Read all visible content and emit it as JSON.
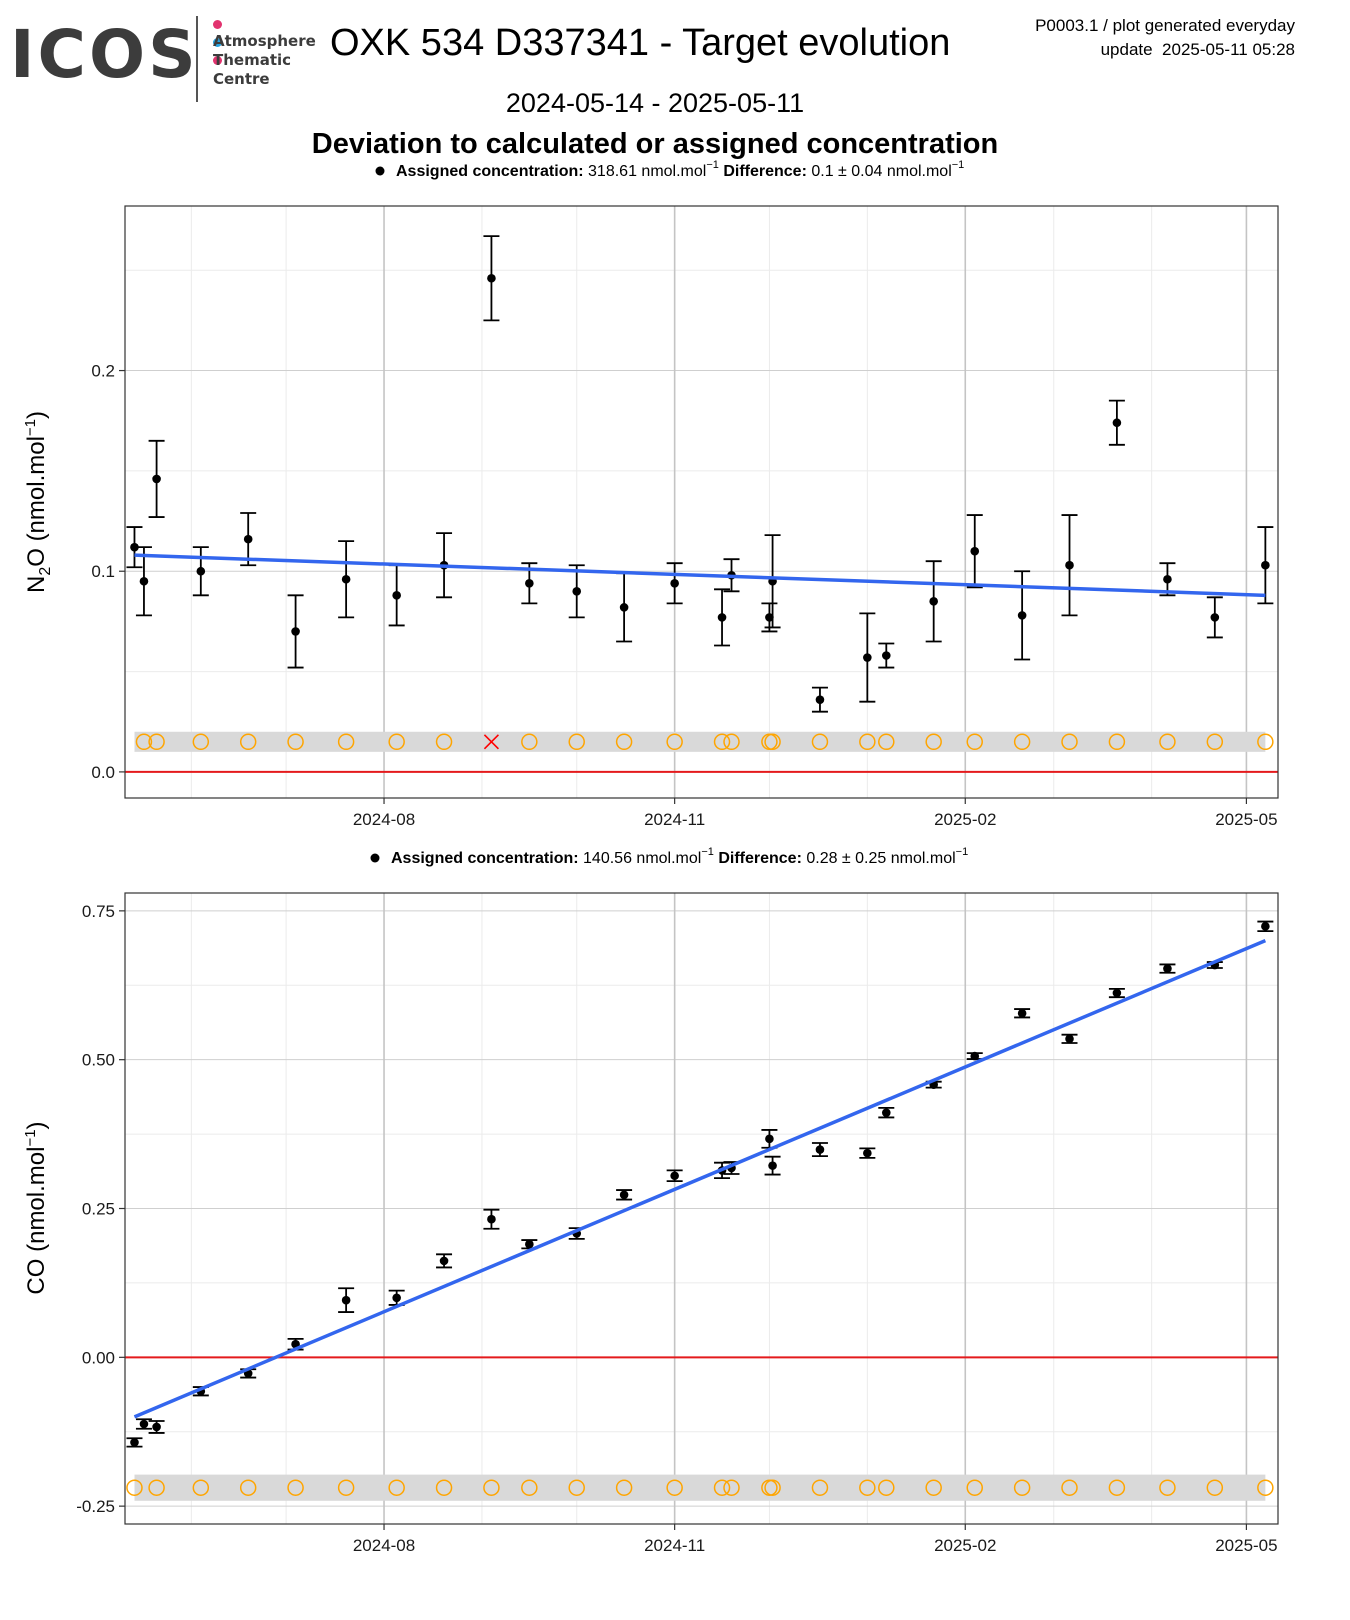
{
  "header": {
    "logo": {
      "word": "ICOS",
      "lines": [
        "Atmosphere",
        "Thematic",
        "Centre"
      ],
      "dot_colors": [
        "#e2336f",
        "#27a2de",
        "#e2336f"
      ]
    },
    "title": "OXK 534 D337341 - Target evolution",
    "meta_line1": "P0003.1 / plot generated everyday",
    "meta_line2": "update  2025-05-11 05:28",
    "period": "2024-05-14 - 2025-05-11",
    "subtitle": "Deviation to calculated or assigned concentration"
  },
  "colors": {
    "trend": "#3366ee",
    "zero_line": "#e41a1c",
    "points": "#000000",
    "circles": "#ffa500",
    "cross": "#ff0000",
    "band": "#d9d9d9",
    "grid_major": "#cfcfcf",
    "grid_minor": "#ebebeb"
  },
  "chart_data": [
    {
      "type": "scatter",
      "ylabel": "N2O (nmol.mol-1)",
      "legend": {
        "label_bold": "Assigned concentration:",
        "label_value": "318.61 nmol.mol",
        "diff_bold": "Difference:",
        "diff_value": "0.1 ± 0.04 nmol.mol",
        "position": "top"
      },
      "x_ticks": [
        "2024-08",
        "2024-11",
        "2025-02",
        "2025-05"
      ],
      "ylim": [
        -0.013,
        0.282
      ],
      "y_ticks": [
        0.0,
        0.1,
        0.2
      ],
      "y_tick_labels": [
        "0.0",
        "0.1",
        "0.2"
      ],
      "points": [
        {
          "x": "2024-05-14",
          "y": 0.112,
          "err": 0.01
        },
        {
          "x": "2024-05-17",
          "y": 0.095,
          "err": 0.017
        },
        {
          "x": "2024-05-21",
          "y": 0.146,
          "err": 0.019
        },
        {
          "x": "2024-06-04",
          "y": 0.1,
          "err": 0.012
        },
        {
          "x": "2024-06-19",
          "y": 0.116,
          "err": 0.013
        },
        {
          "x": "2024-07-04",
          "y": 0.07,
          "err": 0.018
        },
        {
          "x": "2024-07-20",
          "y": 0.096,
          "err": 0.019
        },
        {
          "x": "2024-08-05",
          "y": 0.088,
          "err": 0.015
        },
        {
          "x": "2024-08-20",
          "y": 0.103,
          "err": 0.016
        },
        {
          "x": "2024-09-04",
          "y": 0.246,
          "err": 0.021
        },
        {
          "x": "2024-09-16",
          "y": 0.094,
          "err": 0.01
        },
        {
          "x": "2024-10-01",
          "y": 0.09,
          "err": 0.013
        },
        {
          "x": "2024-10-16",
          "y": 0.082,
          "err": 0.017
        },
        {
          "x": "2024-11-01",
          "y": 0.094,
          "err": 0.01
        },
        {
          "x": "2024-11-16",
          "y": 0.077,
          "err": 0.014
        },
        {
          "x": "2024-11-19",
          "y": 0.098,
          "err": 0.008
        },
        {
          "x": "2024-12-01",
          "y": 0.077,
          "err": 0.007
        },
        {
          "x": "2024-12-02",
          "y": 0.095,
          "err": 0.023
        },
        {
          "x": "2024-12-17",
          "y": 0.036,
          "err": 0.006
        },
        {
          "x": "2025-01-01",
          "y": 0.057,
          "err": 0.022
        },
        {
          "x": "2025-01-07",
          "y": 0.058,
          "err": 0.006
        },
        {
          "x": "2025-01-22",
          "y": 0.085,
          "err": 0.02
        },
        {
          "x": "2025-02-04",
          "y": 0.11,
          "err": 0.018
        },
        {
          "x": "2025-02-19",
          "y": 0.078,
          "err": 0.022
        },
        {
          "x": "2025-03-06",
          "y": 0.103,
          "err": 0.025
        },
        {
          "x": "2025-03-21",
          "y": 0.174,
          "err": 0.011
        },
        {
          "x": "2025-04-06",
          "y": 0.096,
          "err": 0.008
        },
        {
          "x": "2025-04-21",
          "y": 0.077,
          "err": 0.01
        },
        {
          "x": "2025-05-07",
          "y": 0.103,
          "err": 0.019
        }
      ],
      "trend": {
        "x_start": "2024-05-14",
        "y_start": 0.108,
        "x_end": "2025-05-07",
        "y_end": 0.088
      },
      "flags": {
        "y": 0.015,
        "band_half": 0.005,
        "x": [
          "2024-05-17",
          "2024-05-21",
          "2024-06-04",
          "2024-06-19",
          "2024-07-04",
          "2024-07-20",
          "2024-08-05",
          "2024-08-20",
          "2024-09-04",
          "2024-09-16",
          "2024-10-01",
          "2024-10-16",
          "2024-11-01",
          "2024-11-16",
          "2024-11-19",
          "2024-12-01",
          "2024-12-02",
          "2024-12-17",
          "2025-01-01",
          "2025-01-07",
          "2025-01-22",
          "2025-02-04",
          "2025-02-19",
          "2025-03-06",
          "2025-03-21",
          "2025-04-06",
          "2025-04-21",
          "2025-05-07"
        ],
        "cross_x": [
          "2024-09-04"
        ]
      }
    },
    {
      "type": "scatter",
      "ylabel": "CO (nmol.mol-1)",
      "legend": {
        "label_bold": "Assigned concentration:",
        "label_value": "140.56 nmol.mol",
        "diff_bold": "Difference:",
        "diff_value": "0.28 ± 0.25 nmol.mol",
        "position": "top"
      },
      "x_ticks": [
        "2024-08",
        "2024-11",
        "2025-02",
        "2025-05"
      ],
      "ylim": [
        -0.28,
        0.78
      ],
      "y_ticks": [
        -0.25,
        0.0,
        0.25,
        0.5,
        0.75
      ],
      "y_tick_labels": [
        "-0.25",
        "0.00",
        "0.25",
        "0.50",
        "0.75"
      ],
      "points": [
        {
          "x": "2024-05-14",
          "y": -0.143,
          "err": 0.007
        },
        {
          "x": "2024-05-17",
          "y": -0.112,
          "err": 0.008
        },
        {
          "x": "2024-05-21",
          "y": -0.117,
          "err": 0.01
        },
        {
          "x": "2024-06-04",
          "y": -0.057,
          "err": 0.007
        },
        {
          "x": "2024-06-19",
          "y": -0.027,
          "err": 0.007
        },
        {
          "x": "2024-07-04",
          "y": 0.022,
          "err": 0.009
        },
        {
          "x": "2024-07-20",
          "y": 0.096,
          "err": 0.02
        },
        {
          "x": "2024-08-05",
          "y": 0.1,
          "err": 0.012
        },
        {
          "x": "2024-08-20",
          "y": 0.162,
          "err": 0.011
        },
        {
          "x": "2024-09-04",
          "y": 0.232,
          "err": 0.016
        },
        {
          "x": "2024-09-16",
          "y": 0.19,
          "err": 0.007
        },
        {
          "x": "2024-10-01",
          "y": 0.208,
          "err": 0.009
        },
        {
          "x": "2024-10-16",
          "y": 0.273,
          "err": 0.008
        },
        {
          "x": "2024-11-01",
          "y": 0.305,
          "err": 0.009
        },
        {
          "x": "2024-11-16",
          "y": 0.314,
          "err": 0.013
        },
        {
          "x": "2024-11-19",
          "y": 0.318,
          "err": 0.01
        },
        {
          "x": "2024-12-01",
          "y": 0.367,
          "err": 0.015
        },
        {
          "x": "2024-12-02",
          "y": 0.322,
          "err": 0.015
        },
        {
          "x": "2024-12-17",
          "y": 0.349,
          "err": 0.011
        },
        {
          "x": "2025-01-01",
          "y": 0.343,
          "err": 0.008
        },
        {
          "x": "2025-01-07",
          "y": 0.411,
          "err": 0.008
        },
        {
          "x": "2025-01-22",
          "y": 0.458,
          "err": 0.005
        },
        {
          "x": "2025-02-04",
          "y": 0.506,
          "err": 0.005
        },
        {
          "x": "2025-02-19",
          "y": 0.578,
          "err": 0.007
        },
        {
          "x": "2025-03-06",
          "y": 0.535,
          "err": 0.007
        },
        {
          "x": "2025-03-21",
          "y": 0.612,
          "err": 0.007
        },
        {
          "x": "2025-04-06",
          "y": 0.653,
          "err": 0.007
        },
        {
          "x": "2025-04-21",
          "y": 0.659,
          "err": 0.005
        },
        {
          "x": "2025-05-07",
          "y": 0.724,
          "err": 0.008
        }
      ],
      "trend": {
        "x_start": "2024-05-14",
        "y_start": -0.1,
        "x_end": "2025-05-07",
        "y_end": 0.7
      },
      "flags": {
        "y": -0.219,
        "band_half": 0.022,
        "x": [
          "2024-05-14",
          "2024-05-21",
          "2024-06-04",
          "2024-06-19",
          "2024-07-04",
          "2024-07-20",
          "2024-08-05",
          "2024-08-20",
          "2024-09-04",
          "2024-09-16",
          "2024-10-01",
          "2024-10-16",
          "2024-11-01",
          "2024-11-16",
          "2024-11-19",
          "2024-12-01",
          "2024-12-02",
          "2024-12-17",
          "2025-01-01",
          "2025-01-07",
          "2025-01-22",
          "2025-02-04",
          "2025-02-19",
          "2025-03-06",
          "2025-03-21",
          "2025-04-06",
          "2025-04-21",
          "2025-05-07"
        ],
        "cross_x": []
      }
    }
  ]
}
